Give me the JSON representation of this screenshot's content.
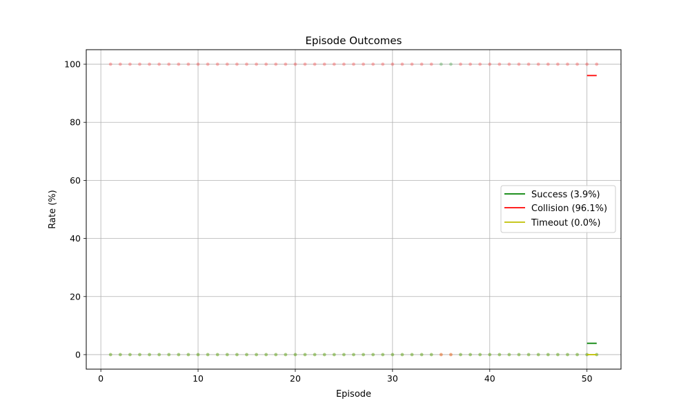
{
  "chart_data": {
    "type": "scatter",
    "title": "Episode Outcomes",
    "xlabel": "Episode",
    "ylabel": "Rate (%)",
    "xlim": [
      -1.5,
      53.5
    ],
    "ylim": [
      -5,
      105
    ],
    "xticks": [
      0,
      10,
      20,
      30,
      40,
      50
    ],
    "yticks": [
      0,
      20,
      40,
      60,
      80,
      100
    ],
    "grid": true,
    "legend_position": "center-right",
    "episodes": [
      1,
      2,
      3,
      4,
      5,
      6,
      7,
      8,
      9,
      10,
      11,
      12,
      13,
      14,
      15,
      16,
      17,
      18,
      19,
      20,
      21,
      22,
      23,
      24,
      25,
      26,
      27,
      28,
      29,
      30,
      31,
      32,
      33,
      34,
      35,
      36,
      37,
      38,
      39,
      40,
      41,
      42,
      43,
      44,
      45,
      46,
      47,
      48,
      49,
      50,
      51
    ],
    "outcomes": [
      "C",
      "C",
      "C",
      "C",
      "C",
      "C",
      "C",
      "C",
      "C",
      "C",
      "C",
      "C",
      "C",
      "C",
      "C",
      "C",
      "C",
      "C",
      "C",
      "C",
      "C",
      "C",
      "C",
      "C",
      "C",
      "C",
      "C",
      "C",
      "C",
      "C",
      "C",
      "C",
      "C",
      "C",
      "S",
      "S",
      "C",
      "C",
      "C",
      "C",
      "C",
      "C",
      "C",
      "C",
      "C",
      "C",
      "C",
      "C",
      "C",
      "C",
      "C"
    ],
    "series": [
      {
        "key": "S",
        "name": "Success (3.9%)",
        "color": "#008000",
        "summary": {
          "x": [
            50,
            51
          ],
          "y": [
            3.9,
            3.9
          ]
        }
      },
      {
        "key": "C",
        "name": "Collision (96.1%)",
        "color": "#ff0000",
        "summary": {
          "x": [
            50,
            51
          ],
          "y": [
            96.1,
            96.1
          ]
        }
      },
      {
        "key": "T",
        "name": "Timeout (0.0%)",
        "color": "#bfbf00",
        "summary": {
          "x": [
            50,
            51
          ],
          "y": [
            0,
            0
          ]
        }
      }
    ]
  }
}
